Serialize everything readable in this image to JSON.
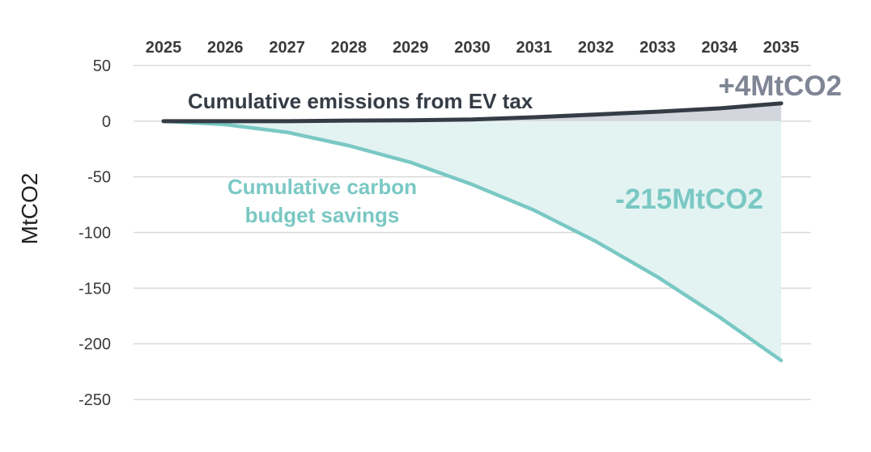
{
  "chart_data": {
    "type": "area",
    "ylabel": "MtCO2",
    "xlabel": "",
    "x": [
      "2025",
      "2026",
      "2027",
      "2028",
      "2029",
      "2030",
      "2031",
      "2032",
      "2033",
      "2034",
      "2035"
    ],
    "ylim": [
      -250,
      50
    ],
    "yticks": [
      50,
      0,
      -50,
      -100,
      -150,
      -200,
      -250
    ],
    "grid": true,
    "series": [
      {
        "name": "Cumulative emissions from EV tax",
        "values": [
          0,
          0,
          0,
          0.5,
          0.8,
          1.5,
          3.5,
          6,
          8.5,
          11.5,
          16
        ],
        "color": "#353c45",
        "fill": "#d3d6dc"
      },
      {
        "name": "Cumulative carbon budget savings",
        "values": [
          0,
          -3,
          -10,
          -22,
          -37,
          -57,
          -80,
          -108,
          -140,
          -176,
          -215
        ],
        "color": "#7ac8c4",
        "fill": "#e3f3f2"
      }
    ],
    "annotations": [
      {
        "text": "+4MtCO2",
        "color": "#7f8595"
      },
      {
        "text": "-215MtCO2",
        "color": "#7ac8c4"
      }
    ]
  }
}
